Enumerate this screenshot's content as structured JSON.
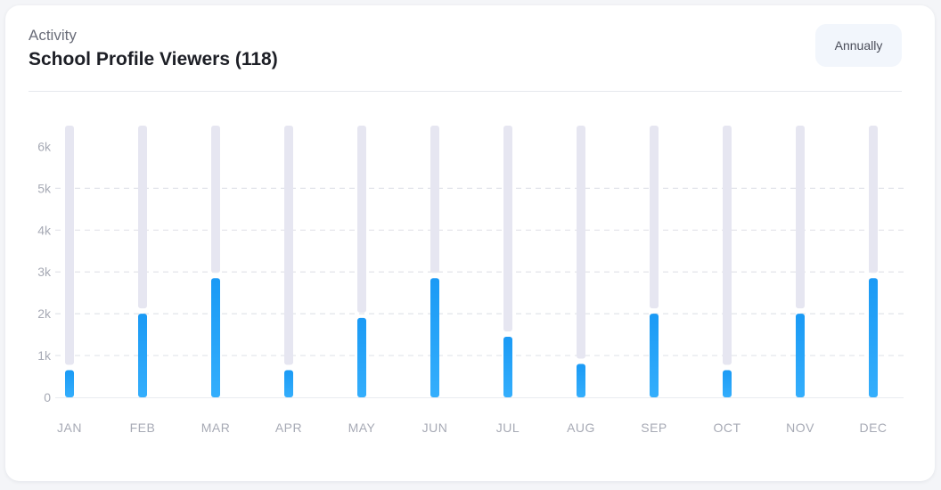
{
  "header": {
    "subtitle": "Activity",
    "title": "School Profile Viewers (118)",
    "period_button": "Annually"
  },
  "colors": {
    "bar": "#1a9af5",
    "bar_light": "#34aefc",
    "track": "#e6e6f1",
    "grid": "#e2e4ea"
  },
  "chart_data": {
    "type": "bar",
    "title": "School Profile Viewers (118)",
    "xlabel": "",
    "ylabel": "",
    "categories": [
      "JAN",
      "FEB",
      "MAR",
      "APR",
      "MAY",
      "JUN",
      "JUL",
      "AUG",
      "SEP",
      "OCT",
      "NOV",
      "DEC"
    ],
    "values": [
      650,
      2000,
      2850,
      650,
      1900,
      2850,
      1450,
      800,
      2000,
      650,
      2000,
      2850
    ],
    "track_max": 6500,
    "ylim": [
      0,
      6500
    ],
    "yticks": [
      0,
      1000,
      2000,
      3000,
      4000,
      5000,
      6000
    ],
    "ytick_labels": [
      "0",
      "1k",
      "2k",
      "3k",
      "4k",
      "5k",
      "6k"
    ],
    "grid": true,
    "legend": "none"
  }
}
